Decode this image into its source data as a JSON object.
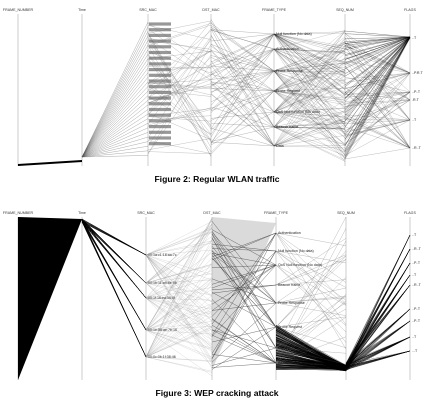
{
  "figures": [
    {
      "caption": "Figure 2:  Regular WLAN traffic",
      "axes": [
        "FRAME_NUMBER",
        "Time",
        "SRC_MAC",
        "DST_MAC",
        "FRAME_TYPE",
        "SEQ_NUM",
        "FLAGS"
      ],
      "frame_types": [
        "Null function (No data)",
        "Authentication",
        "Probe Response",
        "Probe Request",
        "QoS Null function (No data)",
        "Beacon frame",
        "Data"
      ],
      "src_mac": [],
      "flags": [
        "..T",
        "..P.R.T",
        "..P..T",
        ".R.T",
        "..T",
        "..R..T"
      ]
    },
    {
      "caption": "Figure 3: WEP cracking attack",
      "axes": [
        "FRAME_NUMBER",
        "Time",
        "SRC_MAC",
        "DST_MAC",
        "FRAME_TYPE",
        "SEQ_NUM",
        "FLAGS"
      ],
      "frame_types": [
        "Authentication",
        "Null function (No data)",
        "QoS Null function (No data)",
        "Beacon frame",
        "Probe Response",
        "Probe Request",
        "Data",
        "Reassociation Request"
      ],
      "src_mac": [
        "00:1a:c1:18:aa:7c",
        "00:1b:11:a9:8e:9b",
        "00:1f:16:ea:56:8f",
        "00:1e:58:ae:7b:16",
        "00:0c:0b:1f:38:46"
      ],
      "flags": [
        "..T",
        "..R..T",
        "..P..T",
        "..T",
        "..R..T",
        "..P..T",
        "..P..T",
        "..T",
        "...T"
      ]
    }
  ]
}
